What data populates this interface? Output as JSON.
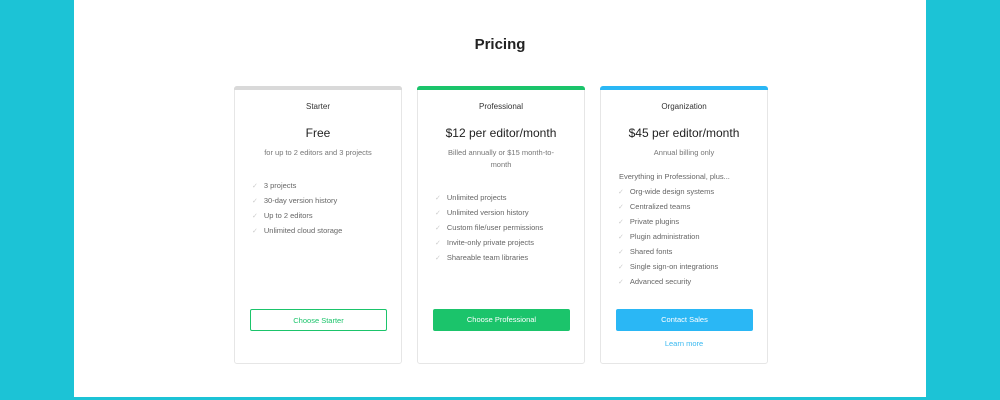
{
  "title": "Pricing",
  "colors": {
    "background": "#1cc3d6",
    "starter": "#d9d9d9",
    "professional": "#1bc46b",
    "organization": "#2ab7f5"
  },
  "plans": [
    {
      "name": "Starter",
      "price": "Free",
      "subtitle": "for up to 2 editors and 3 projects",
      "lead": "",
      "features": [
        "3 projects",
        "30-day version history",
        "Up to 2 editors",
        "Unlimited cloud storage"
      ],
      "button": "Choose Starter"
    },
    {
      "name": "Professional",
      "price": "$12 per editor/month",
      "subtitle": "Billed annually or $15 month-to-month",
      "lead": "",
      "features": [
        "Unlimited projects",
        "Unlimited version history",
        "Custom file/user permissions",
        "Invite-only private projects",
        "Shareable team libraries"
      ],
      "button": "Choose Professional"
    },
    {
      "name": "Organization",
      "price": "$45 per editor/month",
      "subtitle": "Annual billing only",
      "lead": "Everything in Professional, plus...",
      "features": [
        "Org-wide design systems",
        "Centralized teams",
        "Private plugins",
        "Plugin administration",
        "Shared fonts",
        "Single sign-on integrations",
        "Advanced security"
      ],
      "button": "Contact Sales",
      "link": "Learn more"
    }
  ]
}
